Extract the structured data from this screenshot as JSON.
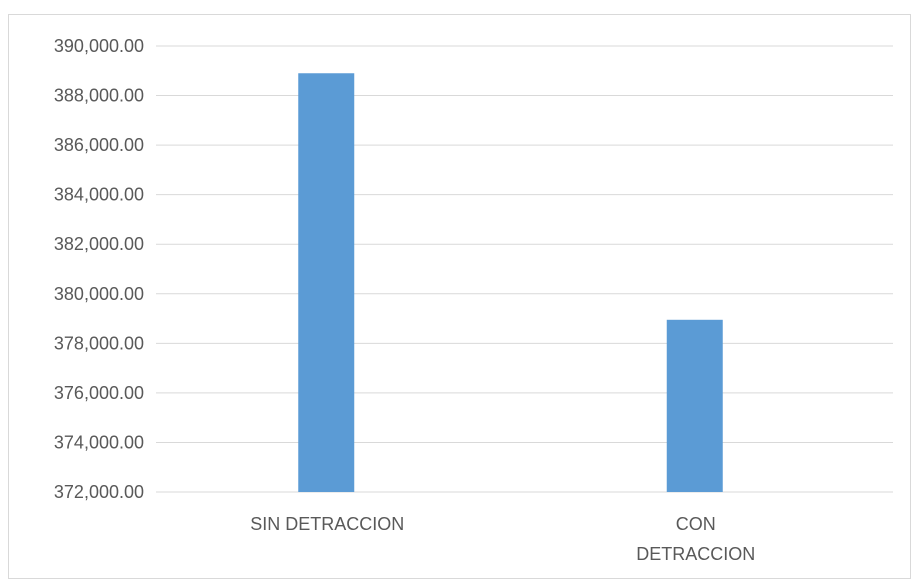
{
  "chart_data": {
    "type": "bar",
    "title": "",
    "xlabel": "",
    "ylabel": "",
    "categories": [
      "SIN DETRACCION",
      "CON DETRACCION"
    ],
    "category_lines": [
      [
        "SIN DETRACCION"
      ],
      [
        "CON",
        "DETRACCION"
      ]
    ],
    "values": [
      388900,
      378950
    ],
    "ylim": [
      372000,
      390000
    ],
    "yticks": [
      372000,
      374000,
      376000,
      378000,
      380000,
      382000,
      384000,
      386000,
      388000,
      390000
    ],
    "ytick_labels": [
      "372,000.00",
      "374,000.00",
      "376,000.00",
      "378,000.00",
      "380,000.00",
      "382,000.00",
      "384,000.00",
      "386,000.00",
      "388,000.00",
      "390,000.00"
    ],
    "grid": true,
    "legend": "none",
    "bar_color": "#5b9bd5",
    "grid_color": "#d9d9d9"
  }
}
